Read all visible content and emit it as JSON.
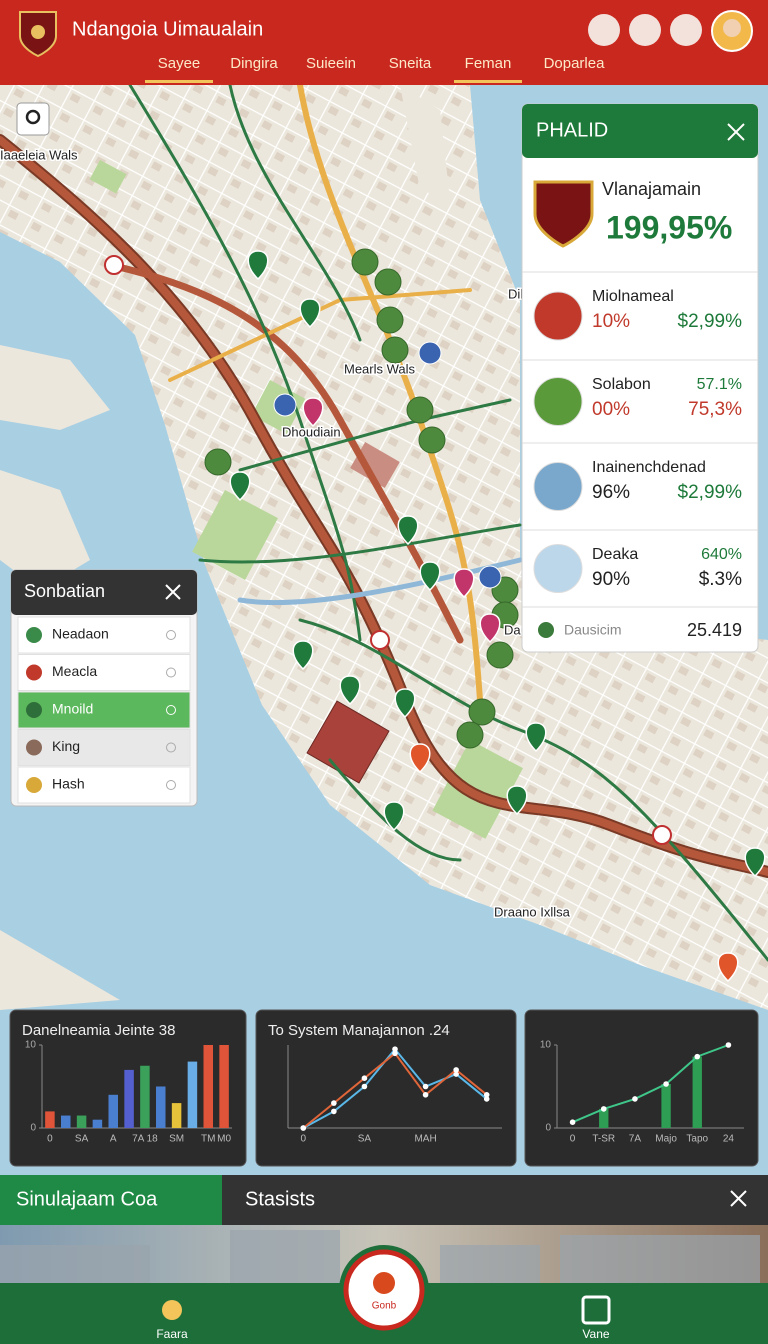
{
  "header": {
    "title": "Ndangoia Uimaualain",
    "tabs": [
      "Sayee",
      "Dingira",
      "Suieein",
      "Sneita",
      "Feman",
      "Doparlea"
    ]
  },
  "map_labels": [
    "Iaaeleia Wals",
    "Mearls Wals",
    "Dhoudiain",
    "Draano Ixllsa",
    "Dib",
    "Da"
  ],
  "info_panel": {
    "title": "PHALID",
    "name": "Vlanajamain",
    "value": "199,95%",
    "rows": [
      {
        "name": "Miolnameal",
        "left": "10%",
        "right": "$2,99%"
      },
      {
        "name": "Solabon",
        "top_right": "57.1%",
        "left": "00%",
        "right": "75,3%"
      },
      {
        "name": "Inainenchdenad",
        "left": "96%",
        "right": "$2,99%"
      },
      {
        "name": "Deaka",
        "top_right": "640%",
        "left": "90%",
        "right": "$.3%"
      }
    ],
    "footer_label": "Dausicim",
    "footer_value": "25.419"
  },
  "layer_panel": {
    "title": "Sonbatian",
    "items": [
      "Neadaon",
      "Meacla",
      "Mnoild",
      "King",
      "Hash"
    ],
    "selected": 2
  },
  "chart_data": [
    {
      "type": "bar",
      "title": "Danelneamia Jeinte 38",
      "categories": [
        "0",
        null,
        "SA",
        null,
        "A",
        null,
        "7A 18",
        null,
        "SM",
        null,
        "TM",
        "M0"
      ],
      "values": [
        2,
        1.5,
        1.5,
        1,
        4,
        7,
        7.5,
        5,
        3,
        8,
        10,
        10
      ],
      "colors": [
        "#e0553a",
        "#4a7fd0",
        "#3aa05a",
        "#4a7fd0",
        "#4a7fd0",
        "#5560d0",
        "#3aa05a",
        "#4a7fd0",
        "#e6c23a",
        "#6aaee8",
        "#e0553a",
        "#e0553a"
      ],
      "ylim": [
        0,
        10
      ],
      "yticks": [
        0,
        10
      ]
    },
    {
      "type": "line",
      "title": "To System Manajannon .24",
      "categories": [
        "0",
        null,
        "SA",
        null,
        "MAH",
        null,
        null
      ],
      "series": [
        {
          "color": "#5ab8e8",
          "values": [
            0,
            2,
            5,
            9.5,
            5,
            6.5,
            3.5
          ]
        },
        {
          "color": "#e0663a",
          "values": [
            0,
            3,
            6,
            9,
            4,
            7,
            4
          ]
        }
      ],
      "ylim": [
        0,
        10
      ]
    },
    {
      "type": "combo",
      "title": "",
      "categories": [
        "0",
        "T-SR",
        "7A",
        "Majo",
        "Tapo",
        "24"
      ],
      "bars": [
        null,
        2.3,
        null,
        5.3,
        8.6,
        null
      ],
      "bar_color": "#2e9e55",
      "line": [
        0.7,
        2.3,
        3.5,
        5.3,
        8.6,
        10
      ],
      "line_color": "#3fc78a",
      "ylim": [
        0,
        10
      ],
      "yticks": [
        0,
        10
      ]
    }
  ],
  "bottom_tabs": [
    "Sinulajaam Coa",
    "Stasists"
  ],
  "nav": [
    "Faara",
    "Gonb",
    "Vane"
  ]
}
